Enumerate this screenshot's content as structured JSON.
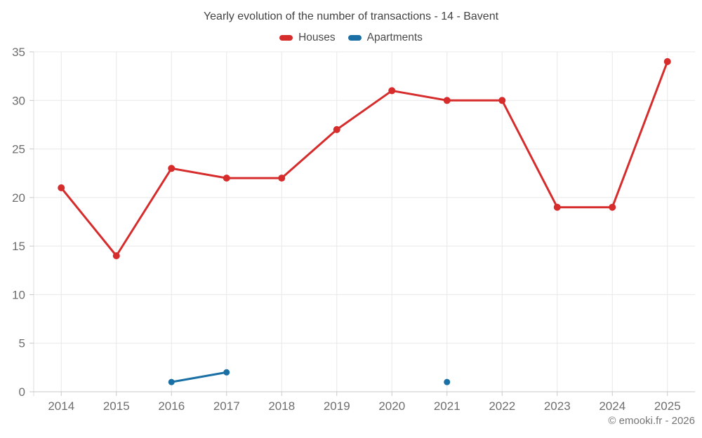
{
  "title": "Yearly evolution of the number of transactions - 14 - Bavent",
  "legend": [
    {
      "label": "Houses",
      "color": "#d62c2c"
    },
    {
      "label": "Apartments",
      "color": "#1a6fa4"
    }
  ],
  "credits": "© emooki.fr - 2026",
  "colors": {
    "background": "#ffffff",
    "grid": "#e8e8e8",
    "axis": "#c9c9c9",
    "axis_light": "#dcdcdc",
    "tick_text": "#6e6e6e",
    "title_text": "#424242",
    "legend_text": "#4a4a4a",
    "credits_text": "#757575",
    "houses": "#d62c2c",
    "apartments": "#1a6fa4"
  },
  "chart_data": {
    "type": "line",
    "title": "Yearly evolution of the number of transactions - 14 - Bavent",
    "categories": [
      "2014",
      "2015",
      "2016",
      "2017",
      "2018",
      "2019",
      "2020",
      "2021",
      "2022",
      "2023",
      "2024",
      "2025"
    ],
    "series": [
      {
        "name": "Houses",
        "color": "#d62c2c",
        "line_width": 3,
        "marker_radius": 5,
        "values": [
          21,
          14,
          23,
          22,
          22,
          27,
          31,
          30,
          30,
          19,
          19,
          34
        ]
      },
      {
        "name": "Apartments",
        "color": "#1a6fa4",
        "line_width": 3,
        "marker_radius": 4.5,
        "values": [
          null,
          null,
          1,
          2,
          null,
          null,
          null,
          1,
          null,
          null,
          null,
          null
        ]
      }
    ],
    "xlabel": "",
    "ylabel": "",
    "ylim": [
      0,
      35
    ],
    "yticks": [
      0,
      5,
      10,
      15,
      20,
      25,
      30,
      35
    ],
    "grid": true,
    "legend_position": "top"
  }
}
